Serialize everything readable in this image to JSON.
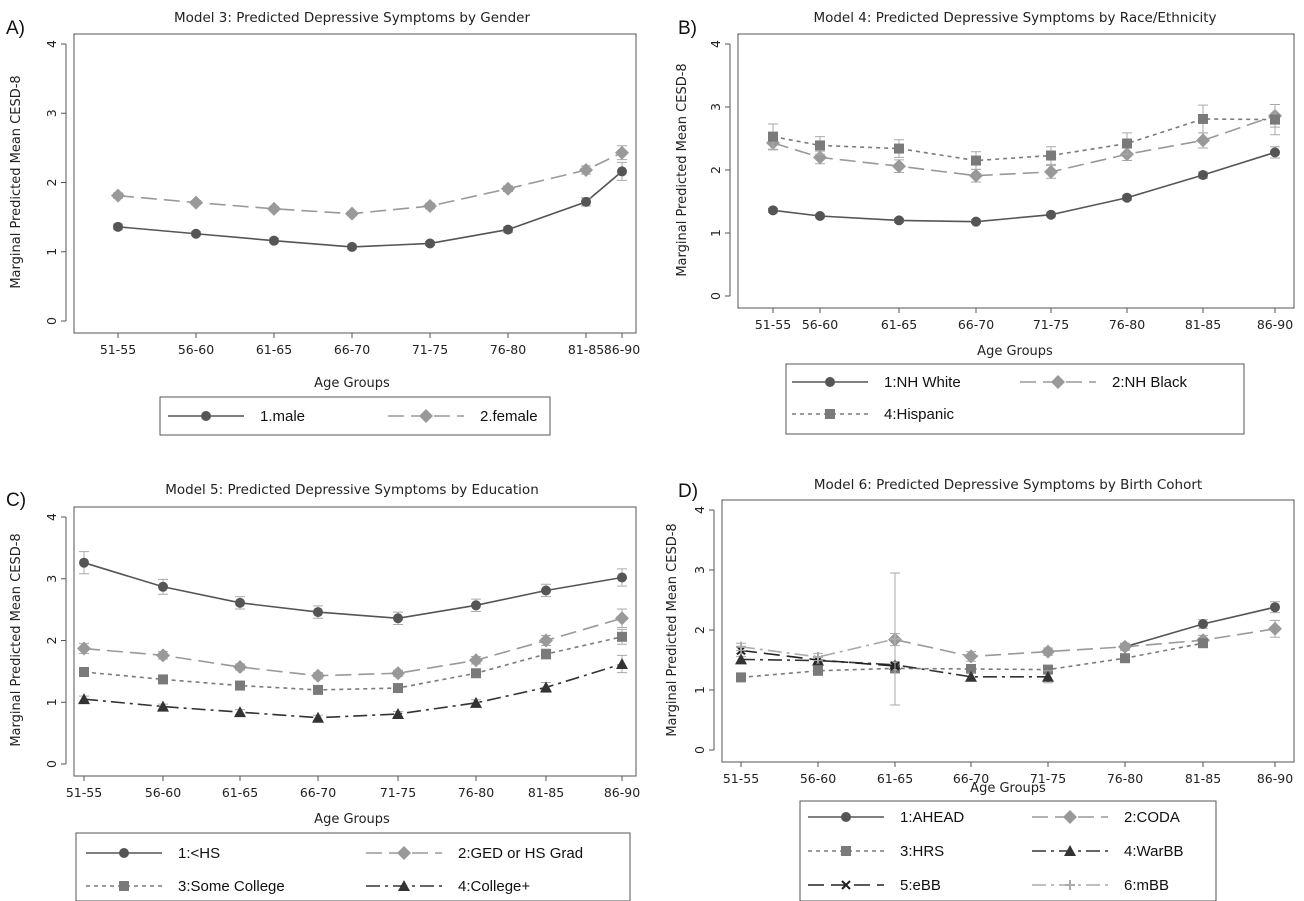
{
  "chart_data": [
    {
      "panel": "A)",
      "type": "line",
      "title": "Model 3: Predicted Depressive Symptoms by Gender",
      "xlabel": "Age Groups",
      "ylabel": "Marginal Predicted Mean CESD-8",
      "categories": [
        "51-55",
        "56-60",
        "61-65",
        "66-70",
        "71-75",
        "76-80",
        "81-85",
        "86-90"
      ],
      "ylim": [
        0,
        4
      ],
      "yticks": [
        "0",
        "1",
        "2",
        "3",
        "4"
      ],
      "series": [
        {
          "name": "1.male",
          "values": [
            1.36,
            1.26,
            1.16,
            1.07,
            1.12,
            1.32,
            1.72,
            2.16
          ],
          "err": [
            0.04,
            0.03,
            0.03,
            0.03,
            0.03,
            0.04,
            0.06,
            0.13
          ],
          "marker": "circle",
          "dash": "solid",
          "color": "#555555"
        },
        {
          "name": "2.female",
          "values": [
            1.81,
            1.71,
            1.62,
            1.55,
            1.66,
            1.91,
            2.18,
            2.43
          ],
          "err": [
            0.04,
            0.03,
            0.03,
            0.03,
            0.04,
            0.04,
            0.06,
            0.1
          ],
          "marker": "diamond",
          "dash": "long",
          "color": "#999999"
        }
      ]
    },
    {
      "panel": "B)",
      "type": "line",
      "title": "Model 4: Predicted Depressive Symptoms by Race/Ethnicity",
      "xlabel": "Age Groups",
      "ylabel": "Marginal Predicted Mean CESD-8",
      "categories": [
        "51-55",
        "56-60",
        "61-65",
        "66-70",
        "71-75",
        "76-80",
        "81-85",
        "86-90"
      ],
      "ylim": [
        0,
        4
      ],
      "yticks": [
        "0",
        "1",
        "2",
        "3",
        "4"
      ],
      "series": [
        {
          "name": "1:NH White",
          "values": [
            1.36,
            1.27,
            1.2,
            1.18,
            1.29,
            1.56,
            1.92,
            2.28
          ],
          "err": [
            0.03,
            0.03,
            0.03,
            0.03,
            0.03,
            0.04,
            0.05,
            0.09
          ],
          "marker": "circle",
          "dash": "solid",
          "color": "#555555"
        },
        {
          "name": "2:NH Black",
          "values": [
            2.43,
            2.2,
            2.06,
            1.91,
            1.97,
            2.25,
            2.47,
            2.86
          ],
          "err": [
            0.11,
            0.1,
            0.1,
            0.1,
            0.1,
            0.1,
            0.12,
            0.18
          ],
          "marker": "diamond",
          "dash": "long",
          "color": "#999999"
        },
        {
          "name": "4:Hispanic",
          "values": [
            2.53,
            2.39,
            2.34,
            2.15,
            2.23,
            2.42,
            2.81,
            2.8
          ],
          "err": [
            0.2,
            0.14,
            0.14,
            0.14,
            0.14,
            0.17,
            0.22,
            0.24
          ],
          "marker": "square",
          "dash": "dot",
          "color": "#7a7a7a"
        }
      ]
    },
    {
      "panel": "C)",
      "type": "line",
      "title": "Model 5: Predicted Depressive Symptoms by Education",
      "xlabel": "Age Groups",
      "ylabel": "Marginal Predicted Mean CESD-8",
      "categories": [
        "51-55",
        "56-60",
        "61-65",
        "66-70",
        "71-75",
        "76-80",
        "81-85",
        "86-90"
      ],
      "ylim": [
        0,
        4
      ],
      "yticks": [
        "0",
        "1",
        "2",
        "3",
        "4"
      ],
      "series": [
        {
          "name": "1:<HS",
          "values": [
            3.26,
            2.87,
            2.61,
            2.46,
            2.36,
            2.57,
            2.81,
            3.02
          ],
          "err": [
            0.18,
            0.12,
            0.1,
            0.1,
            0.1,
            0.1,
            0.1,
            0.14
          ],
          "marker": "circle",
          "dash": "solid",
          "color": "#555555"
        },
        {
          "name": "2:GED or HS Grad",
          "values": [
            1.87,
            1.76,
            1.57,
            1.43,
            1.47,
            1.68,
            2.0,
            2.36
          ],
          "err": [
            0.08,
            0.06,
            0.05,
            0.05,
            0.05,
            0.06,
            0.08,
            0.15
          ],
          "marker": "diamond",
          "dash": "long",
          "color": "#999999"
        },
        {
          "name": "3:Some College",
          "values": [
            1.49,
            1.37,
            1.27,
            1.2,
            1.23,
            1.47,
            1.78,
            2.06
          ],
          "err": [
            0.06,
            0.05,
            0.05,
            0.05,
            0.05,
            0.06,
            0.08,
            0.12
          ],
          "marker": "square",
          "dash": "dot",
          "color": "#7a7a7a"
        },
        {
          "name": "4:College+",
          "values": [
            1.05,
            0.93,
            0.84,
            0.75,
            0.81,
            0.99,
            1.24,
            1.62
          ],
          "err": [
            0.05,
            0.04,
            0.04,
            0.04,
            0.04,
            0.05,
            0.08,
            0.14
          ],
          "marker": "triangle",
          "dash": "dashdot",
          "color": "#333333"
        }
      ]
    },
    {
      "panel": "D)",
      "type": "line",
      "title": "Model 6: Predicted Depressive Symptoms by Birth Cohort",
      "xlabel": "Age Groups",
      "ylabel": "Marginal Predicted Mean CESD-8",
      "categories": [
        "51-55",
        "56-60",
        "61-65",
        "66-70",
        "71-75",
        "76-80",
        "81-85",
        "86-90"
      ],
      "ylim": [
        0,
        4
      ],
      "yticks": [
        "0",
        "1",
        "2",
        "3",
        "4"
      ],
      "series": [
        {
          "name": "1:AHEAD",
          "values": [
            null,
            null,
            null,
            null,
            null,
            1.72,
            2.1,
            2.38
          ],
          "err": [
            null,
            null,
            null,
            null,
            null,
            0.05,
            0.07,
            0.09
          ],
          "marker": "circle",
          "dash": "solid",
          "color": "#555555"
        },
        {
          "name": "2:CODA",
          "values": [
            null,
            null,
            1.84,
            1.56,
            1.64,
            1.72,
            1.83,
            2.02
          ],
          "err": [
            null,
            null,
            0.1,
            0.08,
            0.06,
            0.06,
            0.08,
            0.14
          ],
          "marker": "diamond",
          "dash": "long",
          "color": "#999999"
        },
        {
          "name": "3:HRS",
          "values": [
            1.21,
            1.32,
            1.36,
            1.35,
            1.34,
            1.53,
            1.78,
            null
          ],
          "err": [
            0.05,
            0.04,
            0.04,
            0.04,
            0.04,
            0.05,
            0.06,
            null
          ],
          "marker": "square",
          "dash": "dot",
          "color": "#7a7a7a"
        },
        {
          "name": "4:WarBB",
          "values": [
            1.51,
            1.49,
            1.42,
            1.22,
            1.22,
            null,
            null,
            null
          ],
          "err": [
            0.05,
            0.05,
            0.05,
            0.06,
            0.1,
            null,
            null,
            null
          ],
          "marker": "triangle",
          "dash": "dashdot",
          "color": "#333333"
        },
        {
          "name": "5:eBB",
          "values": [
            1.66,
            1.5,
            1.4,
            null,
            null,
            null,
            null,
            null
          ],
          "err": [
            0.05,
            0.05,
            0.06,
            null,
            null,
            null,
            null,
            null
          ],
          "marker": "x",
          "dash": "long",
          "color": "#222222"
        },
        {
          "name": "6:mBB",
          "values": [
            1.72,
            1.55,
            1.85,
            null,
            null,
            null,
            null,
            null
          ],
          "err": [
            0.06,
            0.06,
            1.1,
            null,
            null,
            null,
            null,
            null
          ],
          "marker": "plus",
          "dash": "dashdot",
          "color": "#aaaaaa"
        }
      ]
    }
  ]
}
